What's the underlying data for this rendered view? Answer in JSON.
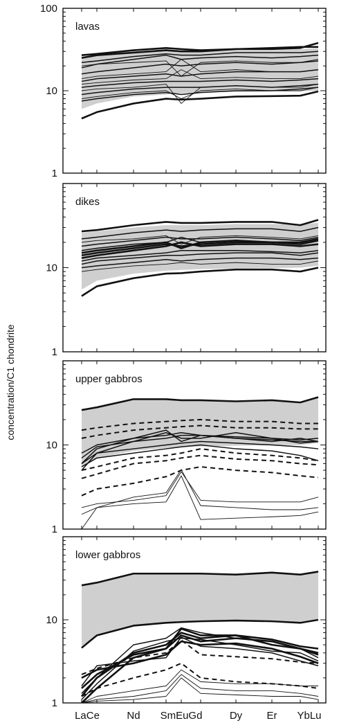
{
  "figure": {
    "ylabel": "concentration/C1 chondrite",
    "x_tick_labels": [
      "LaCe",
      "Nd",
      "SmEuGd",
      "Dy",
      "Er",
      "YbLu"
    ],
    "colors": {
      "band": "#cfcfcf",
      "line": "#111111"
    }
  },
  "chart_data": [
    {
      "type": "line",
      "panel_label": "lavas",
      "yscale": "log",
      "ylim": [
        1,
        100
      ],
      "y_tick_labels": [
        "100",
        "10",
        "1"
      ],
      "x": [
        "La",
        "Ce",
        "Nd",
        "Sm",
        "Eu",
        "Gd",
        "Dy",
        "Er",
        "Yb",
        "Lu"
      ],
      "band": {
        "lower": [
          6,
          7,
          8.5,
          9,
          9.3,
          9.5,
          9.7,
          9.8,
          9.8,
          10
        ],
        "upper": [
          26,
          27,
          29,
          31,
          31,
          31,
          31,
          31,
          32,
          33
        ]
      },
      "series": [
        {
          "style": "thick",
          "values": [
            27,
            28,
            31,
            33,
            32,
            31,
            32,
            33,
            34,
            34
          ]
        },
        {
          "style": "thick",
          "values": [
            25,
            27,
            29,
            31,
            30,
            30,
            32,
            32,
            33,
            38
          ]
        },
        {
          "style": "thick",
          "values": [
            4.6,
            5.5,
            7,
            8,
            7.8,
            8,
            8.5,
            8.6,
            8.7,
            9.8
          ]
        },
        {
          "style": "medium",
          "values": [
            19,
            21,
            24,
            27,
            24,
            25,
            26,
            25,
            26,
            27
          ]
        },
        {
          "style": "medium",
          "values": [
            16,
            17,
            19,
            21,
            20,
            21,
            22,
            21,
            22,
            23
          ]
        },
        {
          "style": "medium",
          "values": [
            13,
            14,
            15,
            16,
            15,
            16,
            17,
            17,
            17,
            18
          ]
        },
        {
          "style": "medium",
          "values": [
            11,
            11.5,
            12.5,
            13,
            13,
            13,
            13.5,
            13,
            13.5,
            14
          ]
        },
        {
          "style": "medium",
          "values": [
            9,
            9.5,
            10.5,
            11,
            11,
            11,
            11.5,
            11,
            11.5,
            12
          ]
        },
        {
          "style": "medium",
          "values": [
            7.5,
            8,
            9,
            9.5,
            9,
            9.5,
            10,
            10,
            10.5,
            11
          ]
        },
        {
          "style": "medium",
          "values": [
            22,
            23,
            26,
            28,
            27,
            27,
            29,
            29,
            29,
            30
          ]
        },
        {
          "style": "thin",
          "values": [
            20,
            21,
            22,
            23,
            15,
            22,
            23,
            22,
            22,
            24
          ]
        },
        {
          "style": "thin",
          "values": [
            14,
            15,
            16,
            17,
            24,
            17,
            18,
            17,
            17,
            18
          ]
        },
        {
          "style": "thin",
          "values": [
            10,
            10.5,
            11,
            12,
            7,
            11,
            11.5,
            11,
            11,
            12
          ]
        },
        {
          "style": "thin",
          "values": [
            8,
            8.5,
            9.5,
            10,
            8,
            10,
            10.5,
            10,
            10,
            11
          ]
        },
        {
          "style": "thin",
          "values": [
            12,
            12.5,
            13.5,
            14,
            18,
            14,
            14.5,
            14,
            14,
            15
          ]
        }
      ]
    },
    {
      "type": "line",
      "panel_label": "dikes",
      "yscale": "log",
      "ylim": [
        1,
        100
      ],
      "y_tick_labels": [
        "10",
        "1"
      ],
      "x": [
        "La",
        "Ce",
        "Nd",
        "Sm",
        "Eu",
        "Gd",
        "Dy",
        "Er",
        "Yb",
        "Lu"
      ],
      "band": {
        "lower": [
          5.5,
          7,
          8.5,
          9.2,
          9.4,
          9.6,
          9.8,
          9.9,
          10,
          10.5
        ],
        "upper": [
          26,
          27,
          30,
          32,
          32,
          32,
          33,
          33,
          33,
          34
        ]
      },
      "series": [
        {
          "style": "thick",
          "values": [
            27,
            28,
            32,
            35,
            34,
            34,
            35,
            35,
            32,
            37
          ]
        },
        {
          "style": "thick",
          "values": [
            4.6,
            6,
            7.5,
            8.5,
            8.6,
            9,
            9.5,
            9.5,
            9,
            10
          ]
        },
        {
          "style": "thick",
          "values": [
            14,
            15,
            17,
            19,
            18,
            19,
            20,
            20,
            19,
            21
          ]
        },
        {
          "style": "thick",
          "values": [
            13,
            14,
            16,
            18,
            20,
            18,
            19,
            19,
            18,
            19
          ]
        },
        {
          "style": "thick",
          "values": [
            15,
            16,
            18,
            20,
            17,
            20,
            21,
            20,
            20,
            22
          ]
        },
        {
          "style": "medium",
          "values": [
            22,
            23,
            26,
            28,
            27,
            28,
            29,
            29,
            27,
            30
          ]
        },
        {
          "style": "medium",
          "values": [
            18,
            19,
            21,
            23,
            22,
            22,
            23,
            22,
            21,
            23
          ]
        },
        {
          "style": "medium",
          "values": [
            16,
            17,
            19,
            20,
            23,
            20,
            21,
            20,
            19,
            21
          ]
        },
        {
          "style": "medium",
          "values": [
            11,
            12,
            13,
            14,
            14,
            14.5,
            15,
            15,
            14,
            15
          ]
        },
        {
          "style": "medium",
          "values": [
            10,
            10.5,
            11.5,
            12.5,
            12,
            12.5,
            13,
            13,
            12.5,
            13
          ]
        },
        {
          "style": "medium",
          "values": [
            12,
            13,
            14,
            15,
            16,
            16,
            16,
            15.5,
            15,
            16
          ]
        },
        {
          "style": "thin",
          "values": [
            20,
            21,
            22,
            24,
            19,
            23,
            24,
            23,
            22,
            24
          ]
        },
        {
          "style": "thin",
          "values": [
            9,
            9.5,
            10.5,
            11,
            11.5,
            11,
            11.5,
            11,
            11,
            12
          ]
        }
      ]
    },
    {
      "type": "line",
      "panel_label": "upper gabbros",
      "yscale": "log",
      "ylim": [
        1,
        100
      ],
      "y_tick_labels": [
        "10",
        "1"
      ],
      "x": [
        "La",
        "Ce",
        "Nd",
        "Sm",
        "Eu",
        "Gd",
        "Dy",
        "Er",
        "Yb",
        "Lu"
      ],
      "band": {
        "lower": [
          5.5,
          7,
          8.5,
          9.2,
          9.4,
          9.6,
          9.8,
          9.9,
          10,
          10.5
        ],
        "upper": [
          26,
          28,
          34,
          34,
          34,
          34,
          33,
          34,
          32,
          37
        ]
      },
      "series": [
        {
          "style": "thick",
          "values": [
            26,
            28,
            35,
            35,
            34,
            34,
            33,
            34,
            32,
            37
          ]
        },
        {
          "style": "dashed",
          "values": [
            15,
            16,
            18,
            19,
            19.5,
            20,
            19,
            19,
            18,
            18
          ]
        },
        {
          "style": "dashed",
          "values": [
            12,
            13,
            15,
            16,
            16.5,
            17,
            16,
            16,
            15.5,
            15.5
          ]
        },
        {
          "style": "dashed",
          "values": [
            5,
            5.5,
            7,
            7.5,
            8,
            9,
            8,
            7.5,
            7,
            6.5
          ]
        },
        {
          "style": "dashed",
          "values": [
            2.5,
            3,
            3.5,
            4.2,
            5,
            5.5,
            5,
            4.7,
            4.3,
            4.1
          ]
        },
        {
          "style": "dashed",
          "values": [
            4,
            4.5,
            6,
            6.5,
            7,
            7.5,
            6.8,
            6.5,
            6,
            5.8
          ]
        },
        {
          "style": "medium",
          "values": [
            5,
            8,
            11,
            12,
            13,
            13,
            12,
            11.5,
            11,
            11
          ]
        },
        {
          "style": "medium",
          "values": [
            6,
            9,
            12,
            13,
            14,
            13,
            12.5,
            12,
            10.5,
            11
          ]
        },
        {
          "style": "medium",
          "values": [
            7,
            9.5,
            11,
            14,
            12,
            12,
            14,
            12,
            11.5,
            12
          ]
        },
        {
          "style": "medium",
          "values": [
            8,
            10,
            12,
            15,
            11,
            13,
            12,
            11,
            12,
            11
          ]
        },
        {
          "style": "medium",
          "values": [
            6,
            8,
            9,
            10,
            10.5,
            11,
            10.5,
            10,
            9.5,
            9
          ]
        },
        {
          "style": "medium",
          "values": [
            5.5,
            7,
            8,
            9,
            9.5,
            10,
            9,
            8.5,
            7.5,
            6.5
          ]
        },
        {
          "style": "thin",
          "values": [
            1.8,
            2,
            2.2,
            2.5,
            4.8,
            2.2,
            2.1,
            2.1,
            2.1,
            2.4
          ]
        },
        {
          "style": "thin",
          "values": [
            1.5,
            1.8,
            2,
            2.1,
            4.3,
            1.3,
            1.35,
            1.4,
            1.45,
            1.6
          ]
        },
        {
          "style": "thin",
          "values": [
            1,
            1.8,
            2.4,
            2.7,
            5.1,
            1.9,
            1.8,
            1.7,
            1.7,
            1.8
          ]
        }
      ]
    },
    {
      "type": "line",
      "panel_label": "lower gabbros",
      "yscale": "log",
      "ylim": [
        1,
        100
      ],
      "y_tick_labels": [
        "10",
        "1"
      ],
      "x": [
        "La",
        "Ce",
        "Nd",
        "Sm",
        "Eu",
        "Gd",
        "Dy",
        "Er",
        "Yb",
        "Lu"
      ],
      "band": {
        "lower": [
          4.8,
          6.5,
          8.5,
          9.2,
          9.4,
          9.6,
          9.8,
          9.6,
          9.2,
          10.2
        ],
        "upper": [
          26,
          28,
          36,
          36,
          36,
          36,
          35,
          37,
          35,
          38
        ]
      },
      "series": [
        {
          "style": "thick",
          "values": [
            26,
            28,
            36,
            36,
            36,
            36,
            35,
            37,
            35,
            38
          ]
        },
        {
          "style": "thick",
          "values": [
            4.6,
            6.5,
            8.5,
            9.2,
            9.4,
            9.6,
            9.8,
            9.6,
            9.2,
            10
          ]
        },
        {
          "style": "thick",
          "values": [
            1.2,
            2,
            4,
            5,
            7,
            6,
            6.5,
            5,
            4.5,
            4
          ]
        },
        {
          "style": "thick",
          "values": [
            1,
            1.5,
            3.5,
            4.5,
            6.5,
            5.5,
            6,
            5.5,
            4.5,
            3.8
          ]
        },
        {
          "style": "thick",
          "values": [
            2,
            2.5,
            3,
            3.8,
            5.5,
            5,
            5.2,
            4.5,
            3.6,
            3
          ]
        },
        {
          "style": "thick",
          "values": [
            1.5,
            2.2,
            3.8,
            4.5,
            7.8,
            6.5,
            6.5,
            5.8,
            4.8,
            4.5
          ]
        },
        {
          "style": "medium",
          "values": [
            1.3,
            2,
            5,
            6,
            8,
            7,
            6,
            5.5,
            4.5,
            3.5
          ]
        },
        {
          "style": "medium",
          "values": [
            1.1,
            1.7,
            4.2,
            5.5,
            6,
            5.8,
            5,
            4.2,
            4,
            3.2
          ]
        },
        {
          "style": "medium",
          "values": [
            1.6,
            2.8,
            3.2,
            3.5,
            6.2,
            4.8,
            4.5,
            4,
            3.2,
            2.8
          ]
        },
        {
          "style": "dashed",
          "values": [
            2.2,
            2.6,
            3.5,
            4,
            5.7,
            3.8,
            3.6,
            3.4,
            3.1,
            3
          ]
        },
        {
          "style": "dashed",
          "values": [
            1.2,
            1.5,
            2,
            2.5,
            3,
            2,
            1.8,
            1.7,
            1.6,
            1.5
          ]
        },
        {
          "style": "thin",
          "values": [
            1,
            1.2,
            1.4,
            1.6,
            2.5,
            1.8,
            1.7,
            1.7,
            1.6,
            1.6
          ]
        },
        {
          "style": "thin",
          "values": [
            1,
            1.1,
            1.2,
            1.4,
            2.2,
            1.5,
            1.4,
            1.4,
            1.3,
            1.2
          ]
        },
        {
          "style": "thin",
          "values": [
            1,
            1.05,
            1.1,
            1.2,
            2,
            1.3,
            1.25,
            1.2,
            1.2,
            1.1
          ]
        }
      ]
    }
  ]
}
